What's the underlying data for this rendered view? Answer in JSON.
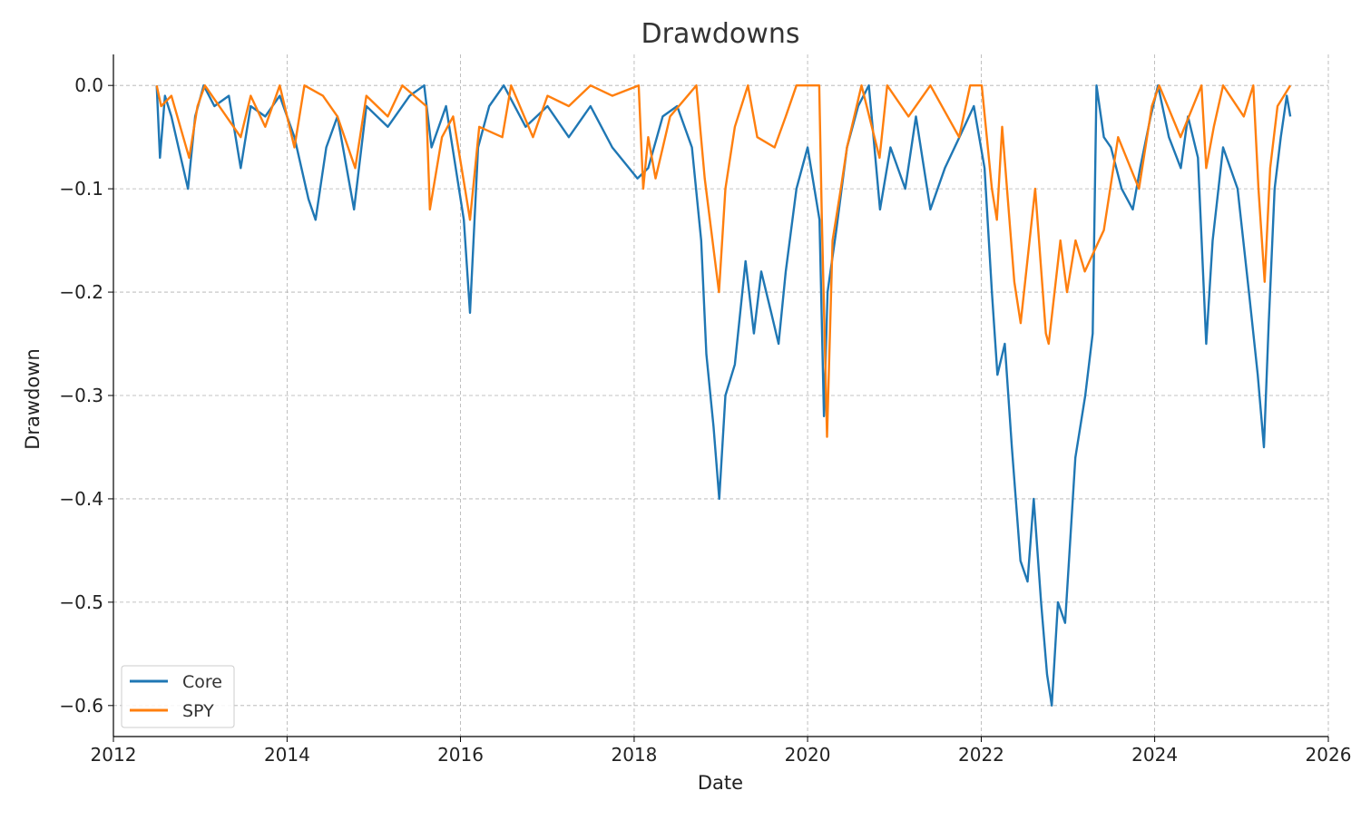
{
  "chart_data": {
    "type": "line",
    "title": "Drawdowns",
    "xlabel": "Date",
    "ylabel": "Drawdown",
    "xlim": [
      "2012-01-01",
      "2026-01-01"
    ],
    "ylim": [
      -0.63,
      0.03
    ],
    "x_ticks": [
      "2012",
      "2014",
      "2016",
      "2018",
      "2020",
      "2022",
      "2024",
      "2026"
    ],
    "y_ticks": [
      0.0,
      -0.1,
      -0.2,
      -0.3,
      -0.4,
      -0.5,
      -0.6
    ],
    "y_tick_labels": [
      "0.0",
      "−0.1",
      "−0.2",
      "−0.3",
      "−0.4",
      "−0.5",
      "−0.6"
    ],
    "grid": true,
    "legend_position": "bottom-left",
    "series": [
      {
        "name": "Core",
        "color": "#1f77b4",
        "points": [
          [
            "2012-07-01",
            0.0
          ],
          [
            "2012-07-15",
            -0.07
          ],
          [
            "2012-08-05",
            -0.01
          ],
          [
            "2012-09-01",
            -0.03
          ],
          [
            "2012-10-01",
            -0.06
          ],
          [
            "2012-11-10",
            -0.1
          ],
          [
            "2012-12-10",
            -0.03
          ],
          [
            "2013-01-15",
            0.0
          ],
          [
            "2013-03-01",
            -0.02
          ],
          [
            "2013-05-01",
            -0.01
          ],
          [
            "2013-06-20",
            -0.08
          ],
          [
            "2013-08-01",
            -0.02
          ],
          [
            "2013-10-01",
            -0.03
          ],
          [
            "2013-12-01",
            -0.01
          ],
          [
            "2014-02-01",
            -0.05
          ],
          [
            "2014-04-01",
            -0.11
          ],
          [
            "2014-05-01",
            -0.13
          ],
          [
            "2014-06-15",
            -0.06
          ],
          [
            "2014-08-01",
            -0.03
          ],
          [
            "2014-10-10",
            -0.12
          ],
          [
            "2014-12-01",
            -0.02
          ],
          [
            "2015-03-01",
            -0.04
          ],
          [
            "2015-06-01",
            -0.01
          ],
          [
            "2015-08-01",
            0.0
          ],
          [
            "2015-09-01",
            -0.06
          ],
          [
            "2015-11-01",
            -0.02
          ],
          [
            "2016-01-15",
            -0.13
          ],
          [
            "2016-02-10",
            -0.22
          ],
          [
            "2016-03-15",
            -0.06
          ],
          [
            "2016-05-01",
            -0.02
          ],
          [
            "2016-07-01",
            0.0
          ],
          [
            "2016-10-01",
            -0.04
          ],
          [
            "2017-01-01",
            -0.02
          ],
          [
            "2017-04-01",
            -0.05
          ],
          [
            "2017-07-01",
            -0.02
          ],
          [
            "2017-10-01",
            -0.06
          ],
          [
            "2018-01-15",
            -0.09
          ],
          [
            "2018-03-01",
            -0.08
          ],
          [
            "2018-05-01",
            -0.03
          ],
          [
            "2018-07-01",
            -0.02
          ],
          [
            "2018-09-01",
            -0.06
          ],
          [
            "2018-10-10",
            -0.15
          ],
          [
            "2018-11-01",
            -0.26
          ],
          [
            "2018-12-01",
            -0.33
          ],
          [
            "2018-12-25",
            -0.4
          ],
          [
            "2019-01-20",
            -0.3
          ],
          [
            "2019-03-01",
            -0.27
          ],
          [
            "2019-04-15",
            -0.17
          ],
          [
            "2019-05-20",
            -0.24
          ],
          [
            "2019-06-20",
            -0.18
          ],
          [
            "2019-08-01",
            -0.22
          ],
          [
            "2019-09-01",
            -0.25
          ],
          [
            "2019-10-01",
            -0.18
          ],
          [
            "2019-11-15",
            -0.1
          ],
          [
            "2020-01-01",
            -0.06
          ],
          [
            "2020-02-20",
            -0.13
          ],
          [
            "2020-03-10",
            -0.32
          ],
          [
            "2020-03-25",
            -0.2
          ],
          [
            "2020-05-01",
            -0.14
          ],
          [
            "2020-06-15",
            -0.06
          ],
          [
            "2020-08-01",
            -0.02
          ],
          [
            "2020-09-15",
            0.0
          ],
          [
            "2020-11-01",
            -0.12
          ],
          [
            "2020-12-15",
            -0.06
          ],
          [
            "2021-02-15",
            -0.1
          ],
          [
            "2021-04-01",
            -0.03
          ],
          [
            "2021-06-01",
            -0.12
          ],
          [
            "2021-08-01",
            -0.08
          ],
          [
            "2021-10-01",
            -0.05
          ],
          [
            "2021-12-01",
            -0.02
          ],
          [
            "2022-01-15",
            -0.08
          ],
          [
            "2022-02-15",
            -0.2
          ],
          [
            "2022-03-10",
            -0.28
          ],
          [
            "2022-04-10",
            -0.25
          ],
          [
            "2022-05-10",
            -0.35
          ],
          [
            "2022-06-15",
            -0.46
          ],
          [
            "2022-07-15",
            -0.48
          ],
          [
            "2022-08-10",
            -0.4
          ],
          [
            "2022-09-10",
            -0.5
          ],
          [
            "2022-10-05",
            -0.57
          ],
          [
            "2022-10-25",
            -0.6
          ],
          [
            "2022-11-20",
            -0.5
          ],
          [
            "2022-12-20",
            -0.52
          ],
          [
            "2023-02-01",
            -0.36
          ],
          [
            "2023-03-15",
            -0.3
          ],
          [
            "2023-04-15",
            -0.24
          ],
          [
            "2023-05-01",
            0.0
          ],
          [
            "2023-06-01",
            -0.05
          ],
          [
            "2023-07-01",
            -0.06
          ],
          [
            "2023-08-15",
            -0.1
          ],
          [
            "2023-10-01",
            -0.12
          ],
          [
            "2023-11-01",
            -0.08
          ],
          [
            "2023-12-15",
            -0.03
          ],
          [
            "2024-01-15",
            0.0
          ],
          [
            "2024-03-01",
            -0.05
          ],
          [
            "2024-04-20",
            -0.08
          ],
          [
            "2024-05-20",
            -0.03
          ],
          [
            "2024-07-01",
            -0.07
          ],
          [
            "2024-08-05",
            -0.25
          ],
          [
            "2024-09-01",
            -0.15
          ],
          [
            "2024-10-15",
            -0.06
          ],
          [
            "2024-12-15",
            -0.1
          ],
          [
            "2025-02-01",
            -0.2
          ],
          [
            "2025-03-10",
            -0.28
          ],
          [
            "2025-04-05",
            -0.35
          ],
          [
            "2025-04-25",
            -0.23
          ],
          [
            "2025-05-20",
            -0.1
          ],
          [
            "2025-06-15",
            -0.05
          ],
          [
            "2025-07-10",
            -0.01
          ],
          [
            "2025-07-25",
            -0.03
          ]
        ]
      },
      {
        "name": "SPY",
        "color": "#ff7f0e",
        "points": [
          [
            "2012-07-01",
            0.0
          ],
          [
            "2012-07-20",
            -0.02
          ],
          [
            "2012-09-01",
            -0.01
          ],
          [
            "2012-11-15",
            -0.07
          ],
          [
            "2012-12-20",
            -0.02
          ],
          [
            "2013-01-20",
            0.0
          ],
          [
            "2013-06-20",
            -0.05
          ],
          [
            "2013-08-01",
            -0.01
          ],
          [
            "2013-10-01",
            -0.04
          ],
          [
            "2013-12-01",
            0.0
          ],
          [
            "2014-02-01",
            -0.06
          ],
          [
            "2014-03-15",
            0.0
          ],
          [
            "2014-06-01",
            -0.01
          ],
          [
            "2014-08-01",
            -0.03
          ],
          [
            "2014-10-15",
            -0.08
          ],
          [
            "2014-12-01",
            -0.01
          ],
          [
            "2015-03-01",
            -0.03
          ],
          [
            "2015-05-01",
            0.0
          ],
          [
            "2015-08-10",
            -0.02
          ],
          [
            "2015-08-25",
            -0.12
          ],
          [
            "2015-10-15",
            -0.05
          ],
          [
            "2015-12-01",
            -0.03
          ],
          [
            "2016-01-20",
            -0.1
          ],
          [
            "2016-02-10",
            -0.13
          ],
          [
            "2016-03-20",
            -0.04
          ],
          [
            "2016-06-25",
            -0.05
          ],
          [
            "2016-08-01",
            0.0
          ],
          [
            "2016-11-01",
            -0.05
          ],
          [
            "2017-01-01",
            -0.01
          ],
          [
            "2017-04-01",
            -0.02
          ],
          [
            "2017-07-01",
            0.0
          ],
          [
            "2017-10-01",
            -0.01
          ],
          [
            "2018-01-20",
            0.0
          ],
          [
            "2018-02-08",
            -0.1
          ],
          [
            "2018-03-01",
            -0.05
          ],
          [
            "2018-04-01",
            -0.09
          ],
          [
            "2018-06-01",
            -0.03
          ],
          [
            "2018-09-20",
            0.0
          ],
          [
            "2018-10-25",
            -0.09
          ],
          [
            "2018-12-24",
            -0.2
          ],
          [
            "2019-01-20",
            -0.1
          ],
          [
            "2019-03-01",
            -0.04
          ],
          [
            "2019-04-25",
            0.0
          ],
          [
            "2019-06-03",
            -0.05
          ],
          [
            "2019-08-15",
            -0.06
          ],
          [
            "2019-10-01",
            -0.03
          ],
          [
            "2019-11-15",
            0.0
          ],
          [
            "2020-02-19",
            0.0
          ],
          [
            "2020-03-01",
            -0.13
          ],
          [
            "2020-03-23",
            -0.34
          ],
          [
            "2020-04-15",
            -0.15
          ],
          [
            "2020-05-20",
            -0.1
          ],
          [
            "2020-06-15",
            -0.06
          ],
          [
            "2020-08-15",
            0.0
          ],
          [
            "2020-10-30",
            -0.07
          ],
          [
            "2020-12-01",
            0.0
          ],
          [
            "2021-03-01",
            -0.03
          ],
          [
            "2021-06-01",
            0.0
          ],
          [
            "2021-09-30",
            -0.05
          ],
          [
            "2021-11-15",
            0.0
          ],
          [
            "2022-01-03",
            0.0
          ],
          [
            "2022-02-15",
            -0.1
          ],
          [
            "2022-03-08",
            -0.13
          ],
          [
            "2022-03-30",
            -0.04
          ],
          [
            "2022-05-20",
            -0.19
          ],
          [
            "2022-06-16",
            -0.23
          ],
          [
            "2022-08-16",
            -0.1
          ],
          [
            "2022-09-30",
            -0.24
          ],
          [
            "2022-10-12",
            -0.25
          ],
          [
            "2022-11-30",
            -0.15
          ],
          [
            "2022-12-28",
            -0.2
          ],
          [
            "2023-02-02",
            -0.15
          ],
          [
            "2023-03-13",
            -0.18
          ],
          [
            "2023-06-01",
            -0.14
          ],
          [
            "2023-07-31",
            -0.05
          ],
          [
            "2023-10-27",
            -0.1
          ],
          [
            "2023-12-20",
            -0.02
          ],
          [
            "2024-01-20",
            0.0
          ],
          [
            "2024-04-19",
            -0.05
          ],
          [
            "2024-07-16",
            0.0
          ],
          [
            "2024-08-05",
            -0.08
          ],
          [
            "2024-09-06",
            -0.04
          ],
          [
            "2024-10-15",
            0.0
          ],
          [
            "2025-01-10",
            -0.03
          ],
          [
            "2025-02-19",
            0.0
          ],
          [
            "2025-03-13",
            -0.1
          ],
          [
            "2025-04-08",
            -0.19
          ],
          [
            "2025-05-01",
            -0.08
          ],
          [
            "2025-06-01",
            -0.02
          ],
          [
            "2025-07-25",
            0.0
          ]
        ]
      }
    ]
  }
}
